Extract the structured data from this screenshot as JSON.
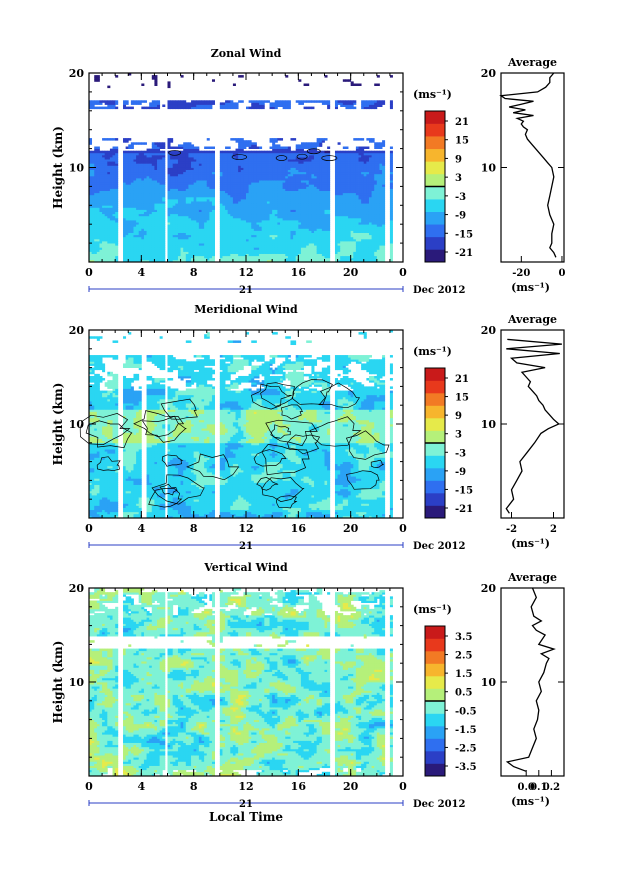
{
  "chart_data": [
    {
      "type": "heatmap",
      "title": "Zonal Wind",
      "ylabel": "Height (km)",
      "ylim": [
        0,
        20
      ],
      "yticks": [
        10,
        20
      ],
      "xlim": [
        0,
        24
      ],
      "xticks": [
        "0",
        "4",
        "8",
        "12",
        "16",
        "20",
        "0"
      ],
      "x_day_label": "21",
      "x_month_label": "Dec 2012",
      "colorbar_unit": "(ms⁻¹)",
      "colorbar_ticks": [
        "21",
        "15",
        "9",
        "3",
        "-3",
        "-9",
        "-15",
        "-21"
      ],
      "colorbar_range": [
        -24,
        24
      ],
      "data_gaps_hours": [
        [
          2.3,
          2.6
        ],
        [
          5.7,
          6.0
        ],
        [
          9.6,
          9.9
        ],
        [
          18.4,
          18.7
        ],
        [
          22.6,
          23.0
        ]
      ]
    },
    {
      "type": "line",
      "title": "Average",
      "ylim": [
        0,
        20
      ],
      "yticks": [
        10,
        20
      ],
      "xlim": [
        -30,
        1
      ],
      "xticks": [
        "-20",
        "0"
      ],
      "xlabel": "(ms⁻¹)",
      "series": [
        {
          "x": [
            -3,
            -4,
            -6,
            -5,
            -5,
            -4,
            -6,
            -7,
            -6,
            -5,
            -4,
            -5,
            -7,
            -9,
            -11,
            -13,
            -15,
            -17,
            -18,
            -17,
            -19,
            -20,
            -19,
            -22,
            -14,
            -24,
            -18,
            -26,
            -20,
            -14,
            -28,
            -30,
            -12,
            -8,
            -6,
            -6,
            -4
          ],
          "y": [
            0.5,
            1,
            1.5,
            2,
            3,
            4,
            5,
            6,
            7,
            8,
            9,
            10,
            10.5,
            11,
            11.5,
            12,
            12.5,
            13,
            13.5,
            14,
            14.3,
            14.6,
            14.9,
            15.2,
            15.5,
            15.8,
            16.1,
            16.4,
            16.7,
            17.0,
            17.3,
            17.6,
            18,
            18.5,
            19,
            19.5,
            20
          ]
        }
      ]
    },
    {
      "type": "heatmap",
      "title": "Meridional Wind",
      "ylabel": "Height (km)",
      "ylim": [
        0,
        20
      ],
      "yticks": [
        10,
        20
      ],
      "xlim": [
        0,
        24
      ],
      "xticks": [
        "0",
        "4",
        "8",
        "12",
        "16",
        "20",
        "0"
      ],
      "x_day_label": "21",
      "x_month_label": "Dec 2012",
      "colorbar_unit": "(ms⁻¹)",
      "colorbar_ticks": [
        "21",
        "15",
        "9",
        "3",
        "-3",
        "-9",
        "-15",
        "-21"
      ],
      "colorbar_range": [
        -24,
        24
      ],
      "data_gaps_hours": [
        [
          2.3,
          2.6
        ],
        [
          4.0,
          4.3
        ],
        [
          5.7,
          6.0
        ],
        [
          9.6,
          9.9
        ],
        [
          18.4,
          18.7
        ],
        [
          22.6,
          23.0
        ]
      ]
    },
    {
      "type": "line",
      "title": "Average",
      "ylim": [
        0,
        20
      ],
      "yticks": [
        10,
        20
      ],
      "xlim": [
        -3,
        3
      ],
      "xticks": [
        "-2",
        "2"
      ],
      "xlabel": "(ms⁻¹)",
      "series": [
        {
          "x": [
            -2.2,
            -2.5,
            -1.8,
            -2.0,
            -1.5,
            -1.0,
            -1.2,
            -0.5,
            0.2,
            0.8,
            1.5,
            2.5,
            2.0,
            1.6,
            1.2,
            1.0,
            0.6,
            0.4,
            0.0,
            -0.4,
            -0.2,
            -0.6,
            -1.0,
            1.2,
            -1.5,
            -2.0,
            2.6,
            -2.5,
            2.8,
            -2.4
          ],
          "y": [
            0.5,
            1,
            2,
            3,
            4,
            5,
            6,
            7,
            8,
            9,
            9.5,
            10,
            10.5,
            11,
            11.5,
            12,
            12.5,
            13,
            13.5,
            14,
            14.5,
            15,
            15.5,
            16,
            16.5,
            17,
            17.5,
            18,
            18.5,
            19
          ]
        }
      ]
    },
    {
      "type": "heatmap",
      "title": "Vertical Wind",
      "ylabel": "Height (km)",
      "xlabel": "Local Time",
      "ylim": [
        0,
        20
      ],
      "yticks": [
        10,
        20
      ],
      "xlim": [
        0,
        24
      ],
      "xticks": [
        "0",
        "4",
        "8",
        "12",
        "16",
        "20",
        "0"
      ],
      "x_day_label": "21",
      "x_month_label": "Dec 2012",
      "colorbar_unit": "(ms⁻¹)",
      "colorbar_ticks": [
        "3.5",
        "2.5",
        "1.5",
        "0.5",
        "-0.5",
        "-1.5",
        "-2.5",
        "-3.5"
      ],
      "colorbar_range": [
        -4,
        4
      ],
      "data_gaps_hours": [
        [
          2.3,
          2.6
        ],
        [
          5.7,
          6.0
        ],
        [
          9.6,
          9.9
        ],
        [
          18.4,
          18.7
        ],
        [
          22.6,
          23.0
        ]
      ]
    },
    {
      "type": "line",
      "title": "Average",
      "ylim": [
        0,
        20
      ],
      "yticks": [
        10,
        20
      ],
      "xlim": [
        -0.2,
        0.3
      ],
      "xticks": [
        "0.0",
        "0.1",
        "0.2"
      ],
      "xlabel": "(ms⁻¹)",
      "series": [
        {
          "x": [
            0.0,
            -0.1,
            -0.15,
            0.02,
            0.05,
            0.08,
            0.06,
            0.09,
            0.1,
            0.08,
            0.12,
            0.1,
            0.14,
            0.16,
            0.18,
            0.12,
            0.22,
            0.1,
            0.15,
            0.08,
            0.05,
            0.12,
            0.06,
            0.04,
            0.08,
            0.05
          ],
          "y": [
            0.5,
            1,
            1.5,
            2,
            3,
            4,
            5,
            6,
            7,
            8,
            9,
            10,
            11,
            12,
            12.5,
            13,
            13.5,
            14,
            15,
            15.5,
            16,
            16.5,
            17,
            18,
            19,
            20
          ]
        }
      ]
    }
  ]
}
